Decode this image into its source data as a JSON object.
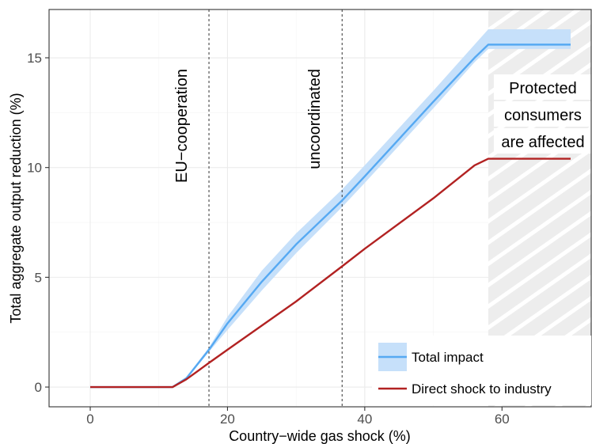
{
  "chart_data": {
    "type": "line",
    "title": "",
    "xlabel": "Country−wide gas shock (%)",
    "ylabel": "Total aggregate output reduction (%)",
    "xlim": [
      -6,
      73
    ],
    "ylim": [
      -0.9,
      17.2
    ],
    "x_ticks": [
      0,
      20,
      40,
      60
    ],
    "y_ticks": [
      0,
      5,
      10,
      15
    ],
    "x_tick_labels": [
      "0",
      "20",
      "40",
      "60"
    ],
    "y_tick_labels": [
      "0",
      "5",
      "10",
      "15"
    ],
    "grid": true,
    "legend_position": "bottom-right",
    "series": [
      {
        "name": "Total impact",
        "color": "#56a9f2",
        "band_color": "#c6e0fa",
        "x": [
          0,
          12,
          14,
          17.3,
          20,
          25,
          30,
          36.7,
          40,
          45,
          50,
          56,
          58,
          70
        ],
        "values": [
          0,
          0,
          0.4,
          1.7,
          2.9,
          4.8,
          6.5,
          8.5,
          9.6,
          11.3,
          13.0,
          15.0,
          15.6,
          15.6
        ],
        "lower": [
          0,
          0,
          0.35,
          1.6,
          2.6,
          4.4,
          6.1,
          8.2,
          9.3,
          11.0,
          12.7,
          14.8,
          15.4,
          15.4
        ],
        "upper": [
          0,
          0,
          0.45,
          1.8,
          3.2,
          5.3,
          7.0,
          9.0,
          10.1,
          11.8,
          13.5,
          15.6,
          16.3,
          16.3
        ]
      },
      {
        "name": "Direct shock to industry",
        "color": "#b22222",
        "x": [
          0,
          12,
          14,
          17.3,
          20,
          30,
          36.7,
          40,
          50,
          56,
          58,
          70
        ],
        "values": [
          0,
          0,
          0.35,
          1.1,
          1.7,
          3.9,
          5.5,
          6.3,
          8.6,
          10.1,
          10.4,
          10.4
        ]
      }
    ],
    "vertical_lines": [
      {
        "x": 17.3,
        "label": "EU−cooperation",
        "style": "dashed"
      },
      {
        "x": 36.7,
        "label": "uncoordinated",
        "style": "dashed"
      }
    ],
    "shaded_region": {
      "x_start": 58,
      "label_lines": [
        "Protected",
        "consumers",
        "are affected"
      ]
    }
  }
}
